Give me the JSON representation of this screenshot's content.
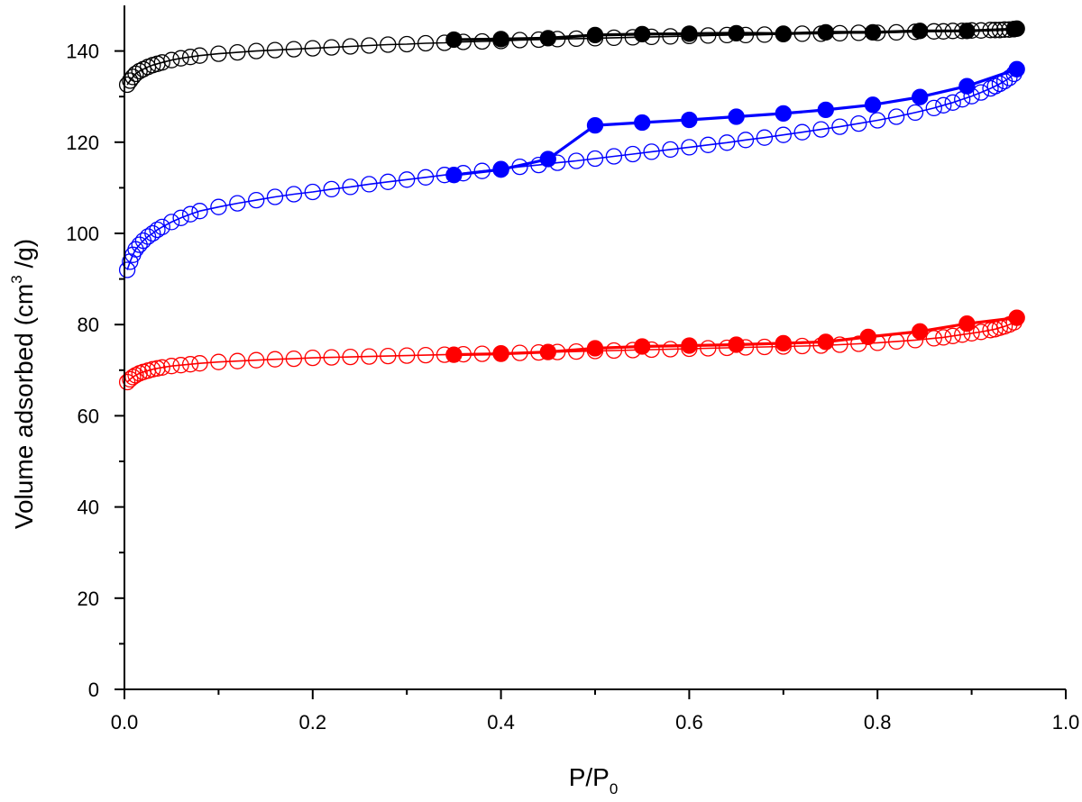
{
  "chart_data": {
    "type": "scatter",
    "title": "",
    "xlabel": {
      "main": "P/P",
      "sub": "0"
    },
    "ylabel": {
      "pre": "Volume adsorbed (cm",
      "sup": "3",
      "post": " /g)"
    },
    "xlim": [
      0.0,
      1.0
    ],
    "ylim": [
      0,
      150
    ],
    "x_ticks": [
      {
        "value": 0.0,
        "label": "0.0"
      },
      {
        "value": 0.2,
        "label": "0.2"
      },
      {
        "value": 0.4,
        "label": "0.4"
      },
      {
        "value": 0.6,
        "label": "0.6"
      },
      {
        "value": 0.8,
        "label": "0.8"
      },
      {
        "value": 1.0,
        "label": "1.0"
      }
    ],
    "x_minor_ticks": [
      0.1,
      0.3,
      0.5,
      0.7,
      0.9
    ],
    "y_ticks": [
      {
        "value": 0,
        "label": "0"
      },
      {
        "value": 20,
        "label": "20"
      },
      {
        "value": 40,
        "label": "40"
      },
      {
        "value": 60,
        "label": "60"
      },
      {
        "value": 80,
        "label": "80"
      },
      {
        "value": 100,
        "label": "100"
      },
      {
        "value": 120,
        "label": "120"
      },
      {
        "value": 140,
        "label": "140"
      }
    ],
    "y_minor_ticks": [
      10,
      30,
      50,
      70,
      90,
      110,
      130
    ],
    "grid": false,
    "series": [
      {
        "name": "black-adsorption",
        "color": "#000000",
        "marker": "open-circle",
        "line": true,
        "x": [
          0.003,
          0.006,
          0.009,
          0.012,
          0.016,
          0.02,
          0.025,
          0.03,
          0.035,
          0.04,
          0.05,
          0.06,
          0.07,
          0.08,
          0.1,
          0.12,
          0.14,
          0.16,
          0.18,
          0.2,
          0.22,
          0.24,
          0.26,
          0.28,
          0.3,
          0.32,
          0.34,
          0.36,
          0.38,
          0.4,
          0.42,
          0.44,
          0.46,
          0.48,
          0.5,
          0.52,
          0.54,
          0.56,
          0.58,
          0.6,
          0.62,
          0.64,
          0.66,
          0.68,
          0.7,
          0.72,
          0.74,
          0.76,
          0.78,
          0.8,
          0.82,
          0.84,
          0.86,
          0.87,
          0.88,
          0.89,
          0.9,
          0.91,
          0.92,
          0.925,
          0.93,
          0.935,
          0.94,
          0.945
        ],
        "y": [
          132.6,
          133.5,
          134.3,
          135.0,
          135.6,
          136.0,
          136.5,
          136.9,
          137.2,
          137.5,
          138.0,
          138.4,
          138.7,
          139.0,
          139.4,
          139.7,
          140.0,
          140.2,
          140.4,
          140.6,
          140.8,
          141.0,
          141.2,
          141.4,
          141.5,
          141.7,
          141.8,
          142.0,
          142.1,
          142.2,
          142.4,
          142.5,
          142.6,
          142.7,
          142.8,
          142.9,
          143.0,
          143.1,
          143.2,
          143.3,
          143.4,
          143.5,
          143.5,
          143.6,
          143.7,
          143.8,
          143.8,
          143.9,
          144.0,
          144.0,
          144.1,
          144.2,
          144.3,
          144.3,
          144.4,
          144.4,
          144.5,
          144.5,
          144.6,
          144.6,
          144.6,
          144.7,
          144.7,
          144.8
        ]
      },
      {
        "name": "black-desorption",
        "color": "#000000",
        "marker": "filled-circle",
        "line": true,
        "x": [
          0.35,
          0.4,
          0.45,
          0.5,
          0.55,
          0.6,
          0.65,
          0.7,
          0.745,
          0.795,
          0.845,
          0.895,
          0.945,
          0.948
        ],
        "y": [
          142.5,
          142.6,
          142.8,
          143.5,
          143.7,
          143.8,
          143.9,
          143.8,
          144.1,
          144.1,
          144.4,
          144.4,
          144.8,
          144.9
        ]
      },
      {
        "name": "blue-adsorption",
        "color": "#0000ff",
        "marker": "open-circle",
        "line": true,
        "x": [
          0.003,
          0.006,
          0.009,
          0.012,
          0.016,
          0.02,
          0.025,
          0.03,
          0.035,
          0.04,
          0.05,
          0.06,
          0.07,
          0.08,
          0.1,
          0.12,
          0.14,
          0.16,
          0.18,
          0.2,
          0.22,
          0.24,
          0.26,
          0.28,
          0.3,
          0.32,
          0.34,
          0.36,
          0.38,
          0.4,
          0.42,
          0.44,
          0.46,
          0.48,
          0.5,
          0.52,
          0.54,
          0.56,
          0.58,
          0.6,
          0.62,
          0.64,
          0.66,
          0.68,
          0.7,
          0.72,
          0.74,
          0.76,
          0.78,
          0.8,
          0.82,
          0.84,
          0.86,
          0.87,
          0.88,
          0.89,
          0.9,
          0.91,
          0.92,
          0.925,
          0.93,
          0.935,
          0.94,
          0.945
        ],
        "y": [
          92.0,
          93.8,
          95.3,
          96.5,
          97.5,
          98.4,
          99.3,
          100.0,
          100.8,
          101.4,
          102.5,
          103.4,
          104.2,
          104.9,
          105.8,
          106.6,
          107.3,
          108.0,
          108.6,
          109.1,
          109.7,
          110.2,
          110.8,
          111.3,
          111.8,
          112.3,
          112.8,
          113.2,
          113.7,
          114.1,
          114.6,
          115.0,
          115.5,
          115.9,
          116.4,
          116.9,
          117.4,
          117.9,
          118.4,
          118.9,
          119.4,
          119.9,
          120.5,
          121.0,
          121.6,
          122.2,
          122.8,
          123.4,
          124.1,
          124.8,
          125.6,
          126.5,
          127.5,
          128.1,
          128.7,
          129.4,
          130.1,
          130.9,
          131.8,
          132.3,
          132.8,
          133.4,
          134.1,
          135.0
        ]
      },
      {
        "name": "blue-desorption",
        "color": "#0000ff",
        "marker": "filled-circle",
        "line": true,
        "x": [
          0.35,
          0.4,
          0.45,
          0.5,
          0.55,
          0.6,
          0.65,
          0.7,
          0.745,
          0.795,
          0.845,
          0.895,
          0.948
        ],
        "y": [
          112.8,
          114.0,
          116.3,
          123.7,
          124.3,
          124.9,
          125.6,
          126.3,
          127.1,
          128.2,
          129.9,
          132.3,
          136.0
        ]
      },
      {
        "name": "red-adsorption",
        "color": "#ff0000",
        "marker": "open-circle",
        "line": true,
        "x": [
          0.003,
          0.006,
          0.009,
          0.012,
          0.016,
          0.02,
          0.025,
          0.03,
          0.035,
          0.04,
          0.05,
          0.06,
          0.07,
          0.08,
          0.1,
          0.12,
          0.14,
          0.16,
          0.18,
          0.2,
          0.22,
          0.24,
          0.26,
          0.28,
          0.3,
          0.32,
          0.34,
          0.36,
          0.38,
          0.4,
          0.42,
          0.44,
          0.46,
          0.48,
          0.5,
          0.52,
          0.54,
          0.56,
          0.58,
          0.6,
          0.62,
          0.64,
          0.66,
          0.68,
          0.7,
          0.72,
          0.74,
          0.76,
          0.78,
          0.8,
          0.82,
          0.84,
          0.86,
          0.87,
          0.88,
          0.89,
          0.9,
          0.91,
          0.92,
          0.925,
          0.93,
          0.935,
          0.94,
          0.945
        ],
        "y": [
          67.4,
          68.0,
          68.5,
          68.9,
          69.3,
          69.6,
          69.9,
          70.2,
          70.4,
          70.6,
          70.9,
          71.1,
          71.3,
          71.5,
          71.8,
          72.0,
          72.2,
          72.4,
          72.5,
          72.7,
          72.8,
          72.9,
          73.0,
          73.1,
          73.2,
          73.3,
          73.4,
          73.5,
          73.6,
          73.7,
          73.8,
          73.9,
          74.0,
          74.1,
          74.2,
          74.3,
          74.4,
          74.5,
          74.6,
          74.7,
          74.8,
          74.9,
          75.0,
          75.1,
          75.2,
          75.3,
          75.4,
          75.6,
          75.8,
          76.0,
          76.3,
          76.6,
          77.0,
          77.2,
          77.5,
          77.8,
          78.1,
          78.4,
          78.8,
          79.0,
          79.3,
          79.6,
          80.0,
          80.5
        ]
      },
      {
        "name": "red-desorption",
        "color": "#ff0000",
        "marker": "filled-circle",
        "line": true,
        "x": [
          0.35,
          0.4,
          0.45,
          0.5,
          0.55,
          0.6,
          0.65,
          0.7,
          0.745,
          0.79,
          0.845,
          0.895,
          0.948
        ],
        "y": [
          73.4,
          73.6,
          74.0,
          74.8,
          75.2,
          75.4,
          75.6,
          75.9,
          76.2,
          77.3,
          78.5,
          80.2,
          81.5
        ]
      }
    ]
  }
}
